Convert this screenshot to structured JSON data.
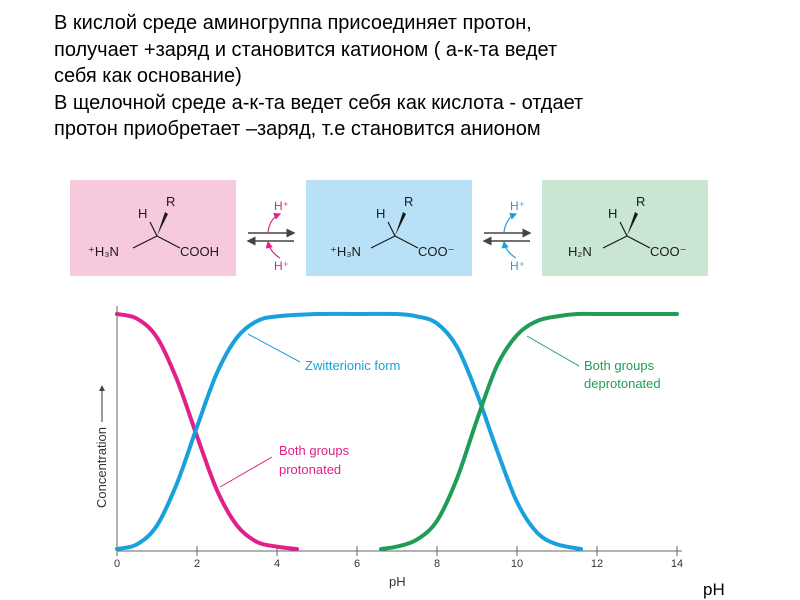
{
  "intro": {
    "lines": [
      "В кислой среде аминогруппа присоединяет протон,",
      "получает +заряд  и становится катионом ( а-к-та ведет",
      "себя как основание)",
      "В щелочной среде а-к-та ведет себя как кислота - отдает",
      "протон приобретает –заряд, т.е становится анионом"
    ]
  },
  "scheme": {
    "colors": {
      "cation_bg": "#f7c9dd",
      "zwitterion_bg": "#b8e1f7",
      "anion_bg": "#c8e6d2",
      "arrow": "#444444"
    },
    "cation": {
      "h": "H",
      "r": "R",
      "amine": "⁺H₃N",
      "acid": "COOH"
    },
    "zwitterion": {
      "h": "H",
      "r": "R",
      "amine": "⁺H₃N",
      "acid": "COO⁻"
    },
    "anion": {
      "h": "H",
      "r": "R",
      "amine": "H₂N",
      "acid": "COO⁻"
    },
    "eq1": {
      "top": "H⁺",
      "bottom": "H⁺"
    },
    "eq2": {
      "top": "H⁺",
      "bottom": "H⁺"
    }
  },
  "chart_data": {
    "type": "line",
    "xlabel": "pH",
    "ylabel": "Concentration",
    "xlim": [
      0,
      14
    ],
    "xticks": [
      "0",
      "2",
      "4",
      "6",
      "8",
      "10",
      "12",
      "14"
    ],
    "colors": {
      "protonated": "#e0218a",
      "zwitterion": "#1aa0dc",
      "deprotonated": "#1f9d57"
    },
    "series": [
      {
        "name": "Both groups protonated",
        "x": [
          0,
          0.5,
          1,
          1.5,
          2,
          2.5,
          3,
          3.5,
          4,
          4.5
        ],
        "y": [
          1.0,
          0.98,
          0.9,
          0.72,
          0.48,
          0.25,
          0.1,
          0.03,
          0.01,
          0.0
        ]
      },
      {
        "name": "Zwitterionic form",
        "x": [
          0,
          0.5,
          1,
          1.5,
          2,
          2.5,
          3,
          3.5,
          4,
          5,
          6,
          7,
          7.5,
          8,
          8.5,
          9,
          9.5,
          10,
          10.5,
          11,
          11.6
        ],
        "y": [
          0.0,
          0.02,
          0.1,
          0.28,
          0.52,
          0.75,
          0.9,
          0.97,
          0.99,
          1.0,
          1.0,
          1.0,
          0.99,
          0.96,
          0.86,
          0.66,
          0.42,
          0.2,
          0.07,
          0.02,
          0.0
        ]
      },
      {
        "name": "Both groups deprotonated",
        "x": [
          6.6,
          7,
          7.5,
          8,
          8.5,
          9,
          9.5,
          10,
          10.5,
          11,
          11.5,
          12,
          13,
          14
        ],
        "y": [
          0.0,
          0.01,
          0.04,
          0.12,
          0.3,
          0.55,
          0.78,
          0.91,
          0.97,
          0.99,
          1.0,
          1.0,
          1.0,
          1.0
        ]
      }
    ],
    "annotations": {
      "protonated": [
        "Both groups",
        "protonated"
      ],
      "zwitterion": [
        "Zwitterionic form"
      ],
      "deprotonated": [
        "Both groups",
        "deprotonated"
      ]
    }
  },
  "footer_label": "pH"
}
